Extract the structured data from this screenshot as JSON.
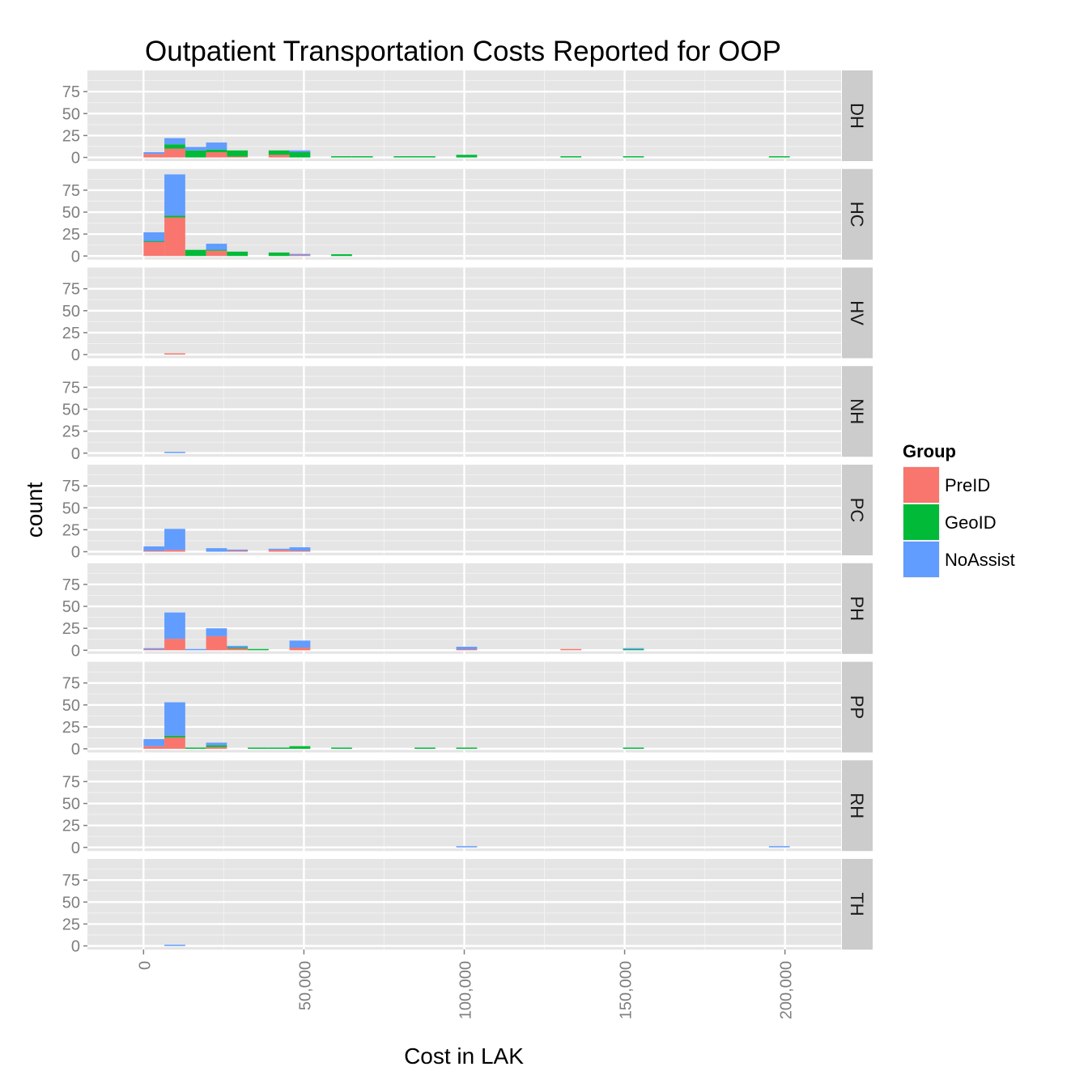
{
  "chart_data": {
    "type": "bar",
    "title": "Outpatient Transportation Costs Reported for OOP",
    "xlabel": "Cost in LAK",
    "ylabel": "count",
    "xlim": [
      -17500,
      217500
    ],
    "ylim": [
      0,
      95
    ],
    "x_ticks": [
      0,
      50000,
      100000,
      150000,
      200000
    ],
    "x_tick_labels": [
      "0",
      "50,000",
      "100,000",
      "150,000",
      "200,000"
    ],
    "y_ticks": [
      0,
      25,
      50,
      75
    ],
    "y_tick_labels": [
      "0",
      "25",
      "50",
      "75"
    ],
    "bin_width": 6500,
    "grid": true,
    "stacked": true,
    "legend": {
      "title": "Group",
      "position": "right",
      "entries": [
        {
          "name": "PreID",
          "color": "#F8766D"
        },
        {
          "name": "GeoID",
          "color": "#00BA38"
        },
        {
          "name": "NoAssist",
          "color": "#619CFF"
        }
      ]
    },
    "facets": [
      {
        "label": "DH",
        "bins": [
          {
            "x": 0,
            "PreID": 4,
            "GeoID": 0,
            "NoAssist": 2
          },
          {
            "x": 6500,
            "PreID": 10,
            "GeoID": 5,
            "NoAssist": 7
          },
          {
            "x": 13000,
            "PreID": 0,
            "GeoID": 8,
            "NoAssist": 4
          },
          {
            "x": 19500,
            "PreID": 6,
            "GeoID": 3,
            "NoAssist": 8
          },
          {
            "x": 26000,
            "PreID": 1,
            "GeoID": 7,
            "NoAssist": 0
          },
          {
            "x": 39000,
            "PreID": 3,
            "GeoID": 5,
            "NoAssist": 0
          },
          {
            "x": 45500,
            "PreID": 0,
            "GeoID": 6,
            "NoAssist": 2
          },
          {
            "x": 58500,
            "PreID": 0,
            "GeoID": 1,
            "NoAssist": 0
          },
          {
            "x": 65000,
            "PreID": 0,
            "GeoID": 1,
            "NoAssist": 0
          },
          {
            "x": 78000,
            "PreID": 0,
            "GeoID": 1,
            "NoAssist": 0
          },
          {
            "x": 84500,
            "PreID": 0,
            "GeoID": 1,
            "NoAssist": 0
          },
          {
            "x": 97500,
            "PreID": 0,
            "GeoID": 3,
            "NoAssist": 0
          },
          {
            "x": 130000,
            "PreID": 0,
            "GeoID": 1,
            "NoAssist": 0
          },
          {
            "x": 149500,
            "PreID": 0,
            "GeoID": 1,
            "NoAssist": 0
          },
          {
            "x": 195000,
            "PreID": 0,
            "GeoID": 1,
            "NoAssist": 0
          }
        ]
      },
      {
        "label": "HC",
        "bins": [
          {
            "x": 0,
            "PreID": 16,
            "GeoID": 1,
            "NoAssist": 10
          },
          {
            "x": 6500,
            "PreID": 44,
            "GeoID": 2,
            "NoAssist": 47
          },
          {
            "x": 13000,
            "PreID": 0,
            "GeoID": 7,
            "NoAssist": 0
          },
          {
            "x": 19500,
            "PreID": 6,
            "GeoID": 1,
            "NoAssist": 7
          },
          {
            "x": 26000,
            "PreID": 0,
            "GeoID": 5,
            "NoAssist": 0
          },
          {
            "x": 39000,
            "PreID": 0,
            "GeoID": 4,
            "NoAssist": 0
          },
          {
            "x": 45500,
            "PreID": 1,
            "GeoID": 0,
            "NoAssist": 1
          },
          {
            "x": 58500,
            "PreID": 0,
            "GeoID": 2,
            "NoAssist": 0
          }
        ]
      },
      {
        "label": "HV",
        "bins": [
          {
            "x": 6500,
            "PreID": 1,
            "GeoID": 0,
            "NoAssist": 0
          }
        ]
      },
      {
        "label": "NH",
        "bins": [
          {
            "x": 6500,
            "PreID": 0,
            "GeoID": 0,
            "NoAssist": 1
          }
        ]
      },
      {
        "label": "PC",
        "bins": [
          {
            "x": 0,
            "PreID": 1,
            "GeoID": 0,
            "NoAssist": 5
          },
          {
            "x": 6500,
            "PreID": 2,
            "GeoID": 0,
            "NoAssist": 24
          },
          {
            "x": 19500,
            "PreID": 0,
            "GeoID": 0,
            "NoAssist": 4
          },
          {
            "x": 26000,
            "PreID": 1,
            "GeoID": 0,
            "NoAssist": 1
          },
          {
            "x": 39000,
            "PreID": 2,
            "GeoID": 0,
            "NoAssist": 1
          },
          {
            "x": 45500,
            "PreID": 1,
            "GeoID": 0,
            "NoAssist": 4
          }
        ]
      },
      {
        "label": "PH",
        "bins": [
          {
            "x": 0,
            "PreID": 1,
            "GeoID": 0,
            "NoAssist": 1
          },
          {
            "x": 6500,
            "PreID": 13,
            "GeoID": 0,
            "NoAssist": 30
          },
          {
            "x": 13000,
            "PreID": 0,
            "GeoID": 0,
            "NoAssist": 1
          },
          {
            "x": 19500,
            "PreID": 16,
            "GeoID": 0,
            "NoAssist": 9
          },
          {
            "x": 26000,
            "PreID": 2,
            "GeoID": 1,
            "NoAssist": 2
          },
          {
            "x": 32500,
            "PreID": 0,
            "GeoID": 1,
            "NoAssist": 0
          },
          {
            "x": 45500,
            "PreID": 3,
            "GeoID": 0,
            "NoAssist": 8
          },
          {
            "x": 97500,
            "PreID": 1,
            "GeoID": 0,
            "NoAssist": 3
          },
          {
            "x": 130000,
            "PreID": 1,
            "GeoID": 0,
            "NoAssist": 0
          },
          {
            "x": 149500,
            "PreID": 0,
            "GeoID": 1,
            "NoAssist": 1
          }
        ]
      },
      {
        "label": "PP",
        "bins": [
          {
            "x": 0,
            "PreID": 3,
            "GeoID": 0,
            "NoAssist": 8
          },
          {
            "x": 6500,
            "PreID": 13,
            "GeoID": 2,
            "NoAssist": 38
          },
          {
            "x": 13000,
            "PreID": 0,
            "GeoID": 1,
            "NoAssist": 0
          },
          {
            "x": 19500,
            "PreID": 2,
            "GeoID": 2,
            "NoAssist": 3
          },
          {
            "x": 32500,
            "PreID": 0,
            "GeoID": 1,
            "NoAssist": 0
          },
          {
            "x": 39000,
            "PreID": 0,
            "GeoID": 1,
            "NoAssist": 0
          },
          {
            "x": 45500,
            "PreID": 0,
            "GeoID": 3,
            "NoAssist": 0
          },
          {
            "x": 58500,
            "PreID": 0,
            "GeoID": 1,
            "NoAssist": 0
          },
          {
            "x": 84500,
            "PreID": 0,
            "GeoID": 1,
            "NoAssist": 0
          },
          {
            "x": 97500,
            "PreID": 0,
            "GeoID": 1,
            "NoAssist": 0
          },
          {
            "x": 149500,
            "PreID": 0,
            "GeoID": 1,
            "NoAssist": 0
          }
        ]
      },
      {
        "label": "RH",
        "bins": [
          {
            "x": 97500,
            "PreID": 0,
            "GeoID": 0,
            "NoAssist": 1
          },
          {
            "x": 195000,
            "PreID": 0,
            "GeoID": 0,
            "NoAssist": 1
          }
        ]
      },
      {
        "label": "TH",
        "bins": [
          {
            "x": 6500,
            "PreID": 0,
            "GeoID": 0,
            "NoAssist": 1
          }
        ]
      }
    ]
  }
}
